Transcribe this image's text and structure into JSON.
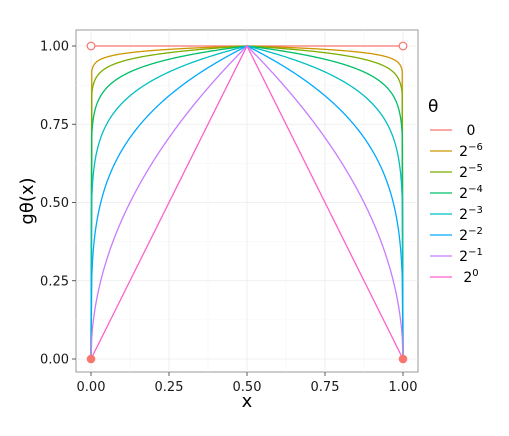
{
  "chart_data": {
    "type": "line",
    "xlabel": "x",
    "ylabel": "gθ(x)",
    "xlim": [
      0,
      1
    ],
    "ylim": [
      0,
      1
    ],
    "x_ticks": [
      "0.00",
      "0.25",
      "0.50",
      "0.75",
      "1.00"
    ],
    "y_ticks": [
      "0.00",
      "0.25",
      "0.50",
      "0.75",
      "1.00"
    ],
    "grid": true,
    "legend": {
      "title": "θ",
      "placement": "right",
      "entries": [
        {
          "base": "0",
          "exp": ""
        },
        {
          "base": "2",
          "exp": "−6"
        },
        {
          "base": "2",
          "exp": "−5"
        },
        {
          "base": "2",
          "exp": "−4"
        },
        {
          "base": "2",
          "exp": "−3"
        },
        {
          "base": "2",
          "exp": "−2"
        },
        {
          "base": "2",
          "exp": "−1"
        },
        {
          "base": "2",
          "exp": "0"
        }
      ]
    },
    "series": [
      {
        "theta": 0,
        "color": "#F8766D",
        "points": [
          [
            0,
            1
          ],
          [
            0.5,
            1
          ],
          [
            1,
            1
          ]
        ],
        "open_endpoints": [
          [
            0,
            1
          ],
          [
            1,
            1
          ]
        ],
        "filled_endpoints": [
          [
            0,
            0
          ],
          [
            1,
            0
          ]
        ]
      },
      {
        "theta": 0.015625,
        "color": "#CD9600"
      },
      {
        "theta": 0.03125,
        "color": "#7CAE00"
      },
      {
        "theta": 0.0625,
        "color": "#00BE67"
      },
      {
        "theta": 0.125,
        "color": "#00BFC4"
      },
      {
        "theta": 0.25,
        "color": "#00A9FF"
      },
      {
        "theta": 0.5,
        "color": "#C77CFF"
      },
      {
        "theta": 1,
        "color": "#FF61CC"
      }
    ]
  }
}
